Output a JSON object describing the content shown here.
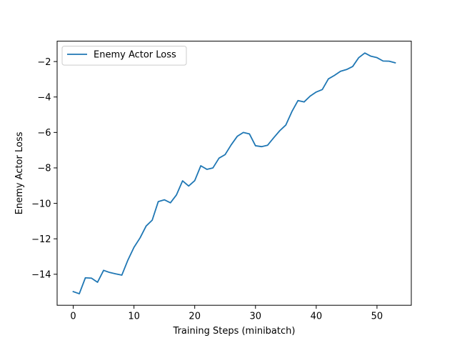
{
  "chart_data": {
    "type": "line",
    "xlabel": "Training Steps (minibatch)",
    "ylabel": "Enemy Actor Loss",
    "xlim": [
      -2.65,
      55.65
    ],
    "ylim": [
      -15.75,
      -0.85
    ],
    "x_ticks": [
      0,
      10,
      20,
      30,
      40,
      50
    ],
    "y_ticks": [
      -14,
      -12,
      -10,
      -8,
      -6,
      -4,
      -2
    ],
    "grid": false,
    "legend_position": "upper-left",
    "series": [
      {
        "name": "Enemy Actor Loss",
        "color": "#1f77b4",
        "x": [
          0,
          1,
          2,
          3,
          4,
          5,
          6,
          7,
          8,
          9,
          10,
          11,
          12,
          13,
          14,
          15,
          16,
          17,
          18,
          19,
          20,
          21,
          22,
          23,
          24,
          25,
          26,
          27,
          28,
          29,
          30,
          31,
          32,
          33,
          34,
          35,
          36,
          37,
          38,
          39,
          40,
          41,
          42,
          43,
          44,
          45,
          46,
          47,
          48,
          49,
          50,
          51,
          52,
          53
        ],
        "values": [
          -14.98,
          -15.1,
          -14.2,
          -14.22,
          -14.45,
          -13.78,
          -13.9,
          -13.98,
          -14.05,
          -13.2,
          -12.48,
          -11.95,
          -11.28,
          -10.95,
          -9.9,
          -9.8,
          -9.97,
          -9.52,
          -8.73,
          -9.02,
          -8.72,
          -7.88,
          -8.08,
          -8.0,
          -7.45,
          -7.25,
          -6.7,
          -6.22,
          -6.0,
          -6.08,
          -6.75,
          -6.8,
          -6.72,
          -6.3,
          -5.9,
          -5.58,
          -4.82,
          -4.2,
          -4.28,
          -3.95,
          -3.72,
          -3.58,
          -2.98,
          -2.78,
          -2.55,
          -2.45,
          -2.28,
          -1.78,
          -1.52,
          -1.7,
          -1.78,
          -1.97,
          -1.98,
          -2.07
        ]
      }
    ]
  }
}
